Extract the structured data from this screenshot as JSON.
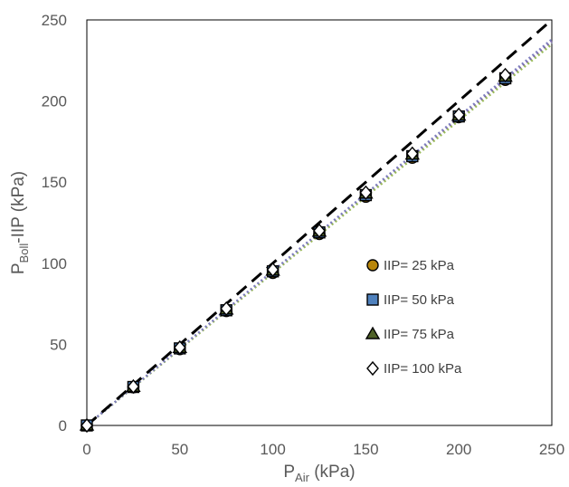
{
  "chart_data": {
    "type": "scatter",
    "xlabel": {
      "main": "P",
      "sub": "Air",
      "suffix": " (kPa)"
    },
    "ylabel": {
      "main": "P",
      "sub": "Boll",
      "suffix": "-IIP (kPa)"
    },
    "xlim": [
      0,
      250
    ],
    "ylim": [
      0,
      250
    ],
    "x_ticks": [
      "0",
      "50",
      "100",
      "150",
      "200",
      "250"
    ],
    "y_ticks": [
      "0",
      "50",
      "100",
      "150",
      "200",
      "250"
    ],
    "grid": false,
    "legend_position": "right",
    "reference_line": {
      "x": [
        0,
        250
      ],
      "y": [
        0,
        250
      ],
      "style": "dashed",
      "color": "#000000"
    },
    "series": [
      {
        "name": "IIP= 25 kPa",
        "marker": "circle",
        "color": "#B8860B",
        "x": [
          0,
          25,
          50,
          75,
          100,
          125,
          150,
          175,
          200,
          225
        ],
        "y": [
          0,
          23.5,
          47,
          70.5,
          94,
          118,
          141,
          165,
          190,
          213
        ],
        "trend": {
          "x": [
            0,
            250
          ],
          "y": [
            0,
            236
          ],
          "color": "#8EA6C9"
        }
      },
      {
        "name": "IIP= 50 kPa",
        "marker": "square",
        "color": "#4F81BD",
        "x": [
          0,
          25,
          50,
          75,
          100,
          125,
          150,
          175,
          200,
          225
        ],
        "y": [
          0,
          23.7,
          47.5,
          71,
          95,
          119,
          142,
          166,
          190.5,
          214
        ],
        "trend": {
          "x": [
            0,
            250
          ],
          "y": [
            0,
            237
          ],
          "color": "#8064A2"
        }
      },
      {
        "name": "IIP= 75 kPa",
        "marker": "triangle",
        "color": "#4F6228",
        "x": [
          0,
          25,
          50,
          75,
          100,
          125,
          150,
          175,
          200,
          225
        ],
        "y": [
          0,
          23.8,
          47.8,
          71.5,
          95.5,
          119.5,
          143,
          167,
          191,
          215
        ],
        "trend": {
          "x": [
            0,
            250
          ],
          "y": [
            0,
            235
          ],
          "color": "#9BBB59"
        }
      },
      {
        "name": "IIP= 100 kPa",
        "marker": "diamond",
        "color": "#FFFFFF",
        "x": [
          0,
          25,
          50,
          75,
          100,
          125,
          150,
          175,
          200,
          225
        ],
        "y": [
          0,
          24,
          48,
          72,
          96,
          120,
          143.5,
          167.5,
          191.5,
          216
        ],
        "trend": {
          "x": [
            0,
            250
          ],
          "y": [
            0,
            238
          ],
          "color": "#7F7FBF"
        }
      }
    ]
  }
}
